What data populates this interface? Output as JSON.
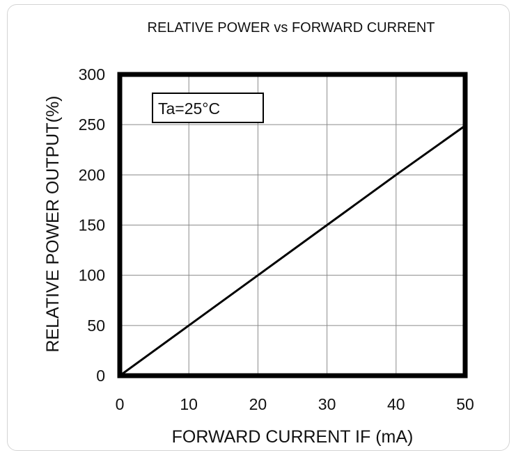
{
  "chart_data": {
    "type": "line",
    "title": "RELATIVE POWER vs FORWARD CURRENT",
    "xlabel": "FORWARD CURRENT IF (mA)",
    "ylabel": "RELATIVE POWER OUTPUT(%)",
    "xlim": [
      0,
      50
    ],
    "ylim": [
      0,
      300
    ],
    "xticks": [
      0,
      10,
      20,
      30,
      40,
      50
    ],
    "yticks": [
      0,
      50,
      100,
      150,
      200,
      250,
      300
    ],
    "grid": true,
    "annotation": "Ta=25°C",
    "series": [
      {
        "x": [
          0,
          10,
          20,
          30,
          40,
          50
        ],
        "y": [
          0,
          50,
          100,
          150,
          200,
          249
        ]
      }
    ]
  }
}
